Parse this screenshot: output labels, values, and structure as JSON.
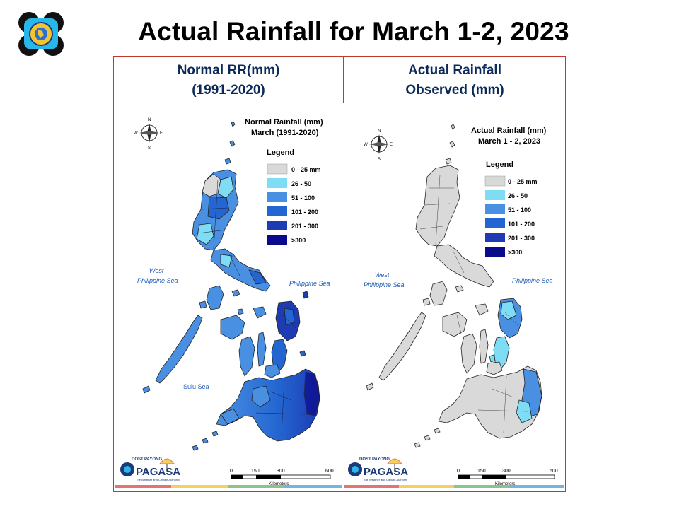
{
  "slide": {
    "title": "Actual Rainfall for March 1-2, 2023"
  },
  "columns": {
    "left_header": [
      "Normal RR(mm)",
      "(1991-2020)"
    ],
    "right_header": [
      "Actual Rainfall",
      "Observed (mm)"
    ]
  },
  "maps": {
    "left": {
      "title_lines": [
        "Normal Rainfall (mm)",
        "March (1991-2020)"
      ],
      "legend_title": "Legend",
      "sea_labels": {
        "west": [
          "West",
          "Philippine Sea"
        ],
        "east": "Philippine Sea",
        "sulu": "Sulu Sea"
      }
    },
    "right": {
      "title_lines": [
        "Actual Rainfall (mm)",
        "March 1 - 2, 2023"
      ],
      "legend_title": "Legend",
      "sea_labels": {
        "west": [
          "West",
          "Philippine Sea"
        ],
        "east": "Philippine Sea"
      }
    }
  },
  "legend": [
    {
      "label": "0 - 25 mm",
      "color": "#d9d9d9"
    },
    {
      "label": "26 - 50",
      "color": "#7fdcf5"
    },
    {
      "label": "51 - 100",
      "color": "#4a90e2"
    },
    {
      "label": "101 - 200",
      "color": "#2366d1"
    },
    {
      "label": "201 - 300",
      "color": "#1f3bb3"
    },
    {
      "label": ">300",
      "color": "#0a0a8c"
    }
  ],
  "scale": {
    "ticks": [
      "0",
      "150",
      "300",
      "600"
    ],
    "unit": "Kilometers"
  },
  "compass": {
    "n": "N",
    "s": "S",
    "e": "E",
    "w": "W"
  },
  "branding": {
    "agency": "PAGASA",
    "tag": "DOST",
    "brand_small": "PAYONG",
    "tagline": "The Weather and Climate Authority"
  },
  "footer_stripe_colors": [
    "#e57373",
    "#f2d15c",
    "#8bc48a",
    "#6fb6e0"
  ]
}
